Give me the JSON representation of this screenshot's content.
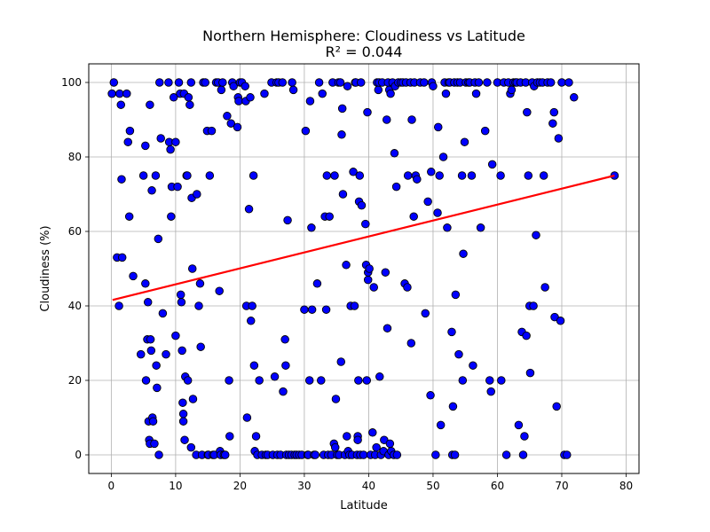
{
  "chart_data": {
    "type": "scatter",
    "title": "Northern Hemisphere: Cloudiness vs Latitude",
    "subtitle": "R² = 0.044",
    "xlabel": "Latitude",
    "ylabel": "Cloudiness (%)",
    "xlim": [
      -3.5,
      82
    ],
    "ylim": [
      -5,
      105
    ],
    "xticks": [
      0,
      10,
      20,
      30,
      40,
      50,
      60,
      70,
      80
    ],
    "yticks": [
      0,
      20,
      40,
      60,
      80,
      100
    ],
    "grid": true,
    "marker_color": "#0000ff",
    "marker_edge_color": "#000000",
    "regression": {
      "x": [
        0.2,
        78.2
      ],
      "y": [
        41.6,
        75.0
      ],
      "color": "#ff0000"
    },
    "points": [
      [
        0.1,
        97
      ],
      [
        0.4,
        100
      ],
      [
        0.9,
        53
      ],
      [
        1.2,
        40
      ],
      [
        1.3,
        97
      ],
      [
        1.5,
        94
      ],
      [
        1.6,
        74
      ],
      [
        1.7,
        53
      ],
      [
        2.4,
        97
      ],
      [
        2.6,
        84
      ],
      [
        2.8,
        64
      ],
      [
        2.9,
        87
      ],
      [
        3.4,
        48
      ],
      [
        4.6,
        27
      ],
      [
        5.0,
        75
      ],
      [
        5.3,
        83
      ],
      [
        5.3,
        46
      ],
      [
        5.4,
        20
      ],
      [
        5.6,
        31
      ],
      [
        5.7,
        41
      ],
      [
        5.8,
        9
      ],
      [
        5.9,
        4
      ],
      [
        6.0,
        3
      ],
      [
        6.0,
        94
      ],
      [
        6.1,
        31
      ],
      [
        6.2,
        28
      ],
      [
        6.3,
        71
      ],
      [
        6.4,
        10
      ],
      [
        6.5,
        9
      ],
      [
        6.7,
        3
      ],
      [
        6.9,
        75
      ],
      [
        7.0,
        24
      ],
      [
        7.1,
        18
      ],
      [
        7.3,
        58
      ],
      [
        7.4,
        0
      ],
      [
        7.5,
        100
      ],
      [
        7.7,
        85
      ],
      [
        8.0,
        38
      ],
      [
        8.5,
        27
      ],
      [
        8.9,
        100
      ],
      [
        9.0,
        84
      ],
      [
        9.2,
        82
      ],
      [
        9.3,
        64
      ],
      [
        9.4,
        72
      ],
      [
        9.7,
        96
      ],
      [
        10.0,
        84
      ],
      [
        10.0,
        32
      ],
      [
        10.3,
        72
      ],
      [
        10.5,
        100
      ],
      [
        10.7,
        97
      ],
      [
        10.8,
        43
      ],
      [
        10.9,
        41
      ],
      [
        11.0,
        28
      ],
      [
        11.1,
        14
      ],
      [
        11.2,
        11
      ],
      [
        11.2,
        9
      ],
      [
        11.3,
        97
      ],
      [
        11.4,
        4
      ],
      [
        11.5,
        21
      ],
      [
        11.7,
        75
      ],
      [
        11.8,
        75
      ],
      [
        11.9,
        20
      ],
      [
        12.0,
        96
      ],
      [
        12.2,
        94
      ],
      [
        12.4,
        100
      ],
      [
        12.4,
        2
      ],
      [
        12.5,
        69
      ],
      [
        12.6,
        50
      ],
      [
        12.7,
        15
      ],
      [
        13.2,
        0
      ],
      [
        13.3,
        70
      ],
      [
        13.6,
        40
      ],
      [
        13.8,
        46
      ],
      [
        13.9,
        29
      ],
      [
        14.1,
        0
      ],
      [
        14.3,
        100
      ],
      [
        14.6,
        100
      ],
      [
        14.9,
        87
      ],
      [
        15.0,
        0
      ],
      [
        15.1,
        0
      ],
      [
        15.3,
        75
      ],
      [
        15.6,
        87
      ],
      [
        15.8,
        0
      ],
      [
        16.0,
        0
      ],
      [
        16.3,
        100
      ],
      [
        16.6,
        100
      ],
      [
        16.8,
        44
      ],
      [
        16.9,
        1
      ],
      [
        17.0,
        0
      ],
      [
        17.1,
        98
      ],
      [
        17.3,
        100
      ],
      [
        17.5,
        0
      ],
      [
        17.7,
        0
      ],
      [
        18.0,
        91
      ],
      [
        18.3,
        20
      ],
      [
        18.4,
        5
      ],
      [
        18.6,
        89
      ],
      [
        18.8,
        100
      ],
      [
        19.0,
        99
      ],
      [
        19.6,
        88
      ],
      [
        19.7,
        96
      ],
      [
        19.8,
        95
      ],
      [
        20.0,
        100
      ],
      [
        20.3,
        100
      ],
      [
        20.8,
        99
      ],
      [
        20.9,
        95
      ],
      [
        21.0,
        40
      ],
      [
        21.1,
        10
      ],
      [
        21.4,
        66
      ],
      [
        21.6,
        96
      ],
      [
        21.7,
        36
      ],
      [
        21.9,
        40
      ],
      [
        22.1,
        75
      ],
      [
        22.2,
        24
      ],
      [
        22.3,
        1
      ],
      [
        22.5,
        5
      ],
      [
        22.7,
        0
      ],
      [
        23.0,
        20
      ],
      [
        23.4,
        0
      ],
      [
        23.8,
        97
      ],
      [
        24.0,
        0
      ],
      [
        24.3,
        0
      ],
      [
        24.9,
        100
      ],
      [
        25.1,
        0
      ],
      [
        25.4,
        21
      ],
      [
        25.7,
        100
      ],
      [
        25.8,
        0
      ],
      [
        26.0,
        100
      ],
      [
        26.3,
        0
      ],
      [
        26.6,
        100
      ],
      [
        26.7,
        17
      ],
      [
        27.0,
        31
      ],
      [
        27.1,
        24
      ],
      [
        27.2,
        0
      ],
      [
        27.4,
        63
      ],
      [
        27.6,
        0
      ],
      [
        28.0,
        0
      ],
      [
        28.1,
        100
      ],
      [
        28.3,
        98
      ],
      [
        28.5,
        0
      ],
      [
        28.8,
        0
      ],
      [
        29.2,
        0
      ],
      [
        29.6,
        0
      ],
      [
        30.0,
        39
      ],
      [
        30.2,
        87
      ],
      [
        30.5,
        0
      ],
      [
        30.6,
        0
      ],
      [
        30.8,
        20
      ],
      [
        30.9,
        95
      ],
      [
        31.1,
        61
      ],
      [
        31.2,
        39
      ],
      [
        31.5,
        0
      ],
      [
        31.7,
        0
      ],
      [
        32.0,
        46
      ],
      [
        32.3,
        100
      ],
      [
        32.6,
        20
      ],
      [
        32.8,
        97
      ],
      [
        33.0,
        0
      ],
      [
        33.2,
        64
      ],
      [
        33.4,
        39
      ],
      [
        33.5,
        75
      ],
      [
        33.7,
        0
      ],
      [
        33.9,
        64
      ],
      [
        34.2,
        0
      ],
      [
        34.4,
        100
      ],
      [
        34.6,
        3
      ],
      [
        34.7,
        75
      ],
      [
        34.8,
        2
      ],
      [
        34.9,
        15
      ],
      [
        35.1,
        0
      ],
      [
        35.3,
        100
      ],
      [
        35.4,
        0
      ],
      [
        35.6,
        100
      ],
      [
        35.7,
        25
      ],
      [
        35.8,
        86
      ],
      [
        35.9,
        93
      ],
      [
        36.0,
        70
      ],
      [
        36.3,
        0
      ],
      [
        36.5,
        51
      ],
      [
        36.6,
        5
      ],
      [
        36.7,
        99
      ],
      [
        36.8,
        1
      ],
      [
        37.0,
        0
      ],
      [
        37.2,
        40
      ],
      [
        37.4,
        0
      ],
      [
        37.6,
        76
      ],
      [
        37.8,
        40
      ],
      [
        37.9,
        100
      ],
      [
        38.0,
        100
      ],
      [
        38.2,
        0
      ],
      [
        38.3,
        5
      ],
      [
        38.3,
        4
      ],
      [
        38.4,
        20
      ],
      [
        38.5,
        68
      ],
      [
        38.6,
        75
      ],
      [
        38.7,
        0
      ],
      [
        38.8,
        100
      ],
      [
        38.9,
        67
      ],
      [
        39.2,
        0
      ],
      [
        39.5,
        62
      ],
      [
        39.6,
        51
      ],
      [
        39.7,
        20
      ],
      [
        39.8,
        92
      ],
      [
        39.9,
        47
      ],
      [
        39.9,
        49
      ],
      [
        40.1,
        50
      ],
      [
        40.3,
        0
      ],
      [
        40.6,
        6
      ],
      [
        40.8,
        45
      ],
      [
        41.0,
        0
      ],
      [
        41.2,
        2
      ],
      [
        41.3,
        100
      ],
      [
        41.5,
        98
      ],
      [
        41.6,
        100
      ],
      [
        41.7,
        21
      ],
      [
        41.9,
        0
      ],
      [
        42.1,
        100
      ],
      [
        42.3,
        1
      ],
      [
        42.4,
        4
      ],
      [
        42.6,
        49
      ],
      [
        42.8,
        90
      ],
      [
        42.9,
        34
      ],
      [
        43.0,
        100
      ],
      [
        43.1,
        0
      ],
      [
        43.2,
        98
      ],
      [
        43.3,
        3
      ],
      [
        43.4,
        97
      ],
      [
        43.5,
        1
      ],
      [
        43.7,
        100
      ],
      [
        43.9,
        0
      ],
      [
        44.0,
        81
      ],
      [
        44.1,
        99
      ],
      [
        44.3,
        72
      ],
      [
        44.4,
        0
      ],
      [
        44.6,
        100
      ],
      [
        45.0,
        100
      ],
      [
        45.3,
        100
      ],
      [
        45.6,
        46
      ],
      [
        45.8,
        100
      ],
      [
        46.0,
        45
      ],
      [
        46.1,
        75
      ],
      [
        46.5,
        100
      ],
      [
        46.6,
        30
      ],
      [
        46.7,
        90
      ],
      [
        47.0,
        64
      ],
      [
        47.1,
        100
      ],
      [
        47.3,
        75
      ],
      [
        47.5,
        74
      ],
      [
        48.0,
        100
      ],
      [
        48.6,
        100
      ],
      [
        48.8,
        38
      ],
      [
        49.2,
        68
      ],
      [
        49.6,
        16
      ],
      [
        49.7,
        76
      ],
      [
        49.8,
        100
      ],
      [
        50.0,
        99
      ],
      [
        50.4,
        0
      ],
      [
        50.7,
        65
      ],
      [
        50.8,
        88
      ],
      [
        51.0,
        75
      ],
      [
        51.2,
        8
      ],
      [
        51.6,
        80
      ],
      [
        51.8,
        100
      ],
      [
        52.0,
        97
      ],
      [
        52.2,
        61
      ],
      [
        52.4,
        100
      ],
      [
        52.6,
        100
      ],
      [
        52.9,
        33
      ],
      [
        53.0,
        0
      ],
      [
        53.1,
        13
      ],
      [
        53.3,
        100
      ],
      [
        53.4,
        0
      ],
      [
        53.5,
        43
      ],
      [
        53.8,
        100
      ],
      [
        54.0,
        27
      ],
      [
        54.2,
        100
      ],
      [
        54.5,
        75
      ],
      [
        54.6,
        20
      ],
      [
        54.7,
        54
      ],
      [
        54.9,
        84
      ],
      [
        55.1,
        100
      ],
      [
        55.5,
        100
      ],
      [
        55.7,
        100
      ],
      [
        56.0,
        75
      ],
      [
        56.2,
        24
      ],
      [
        56.5,
        100
      ],
      [
        56.7,
        97
      ],
      [
        57.1,
        100
      ],
      [
        57.4,
        61
      ],
      [
        58.1,
        87
      ],
      [
        58.4,
        100
      ],
      [
        58.8,
        20
      ],
      [
        59.0,
        17
      ],
      [
        59.2,
        78
      ],
      [
        60.0,
        100
      ],
      [
        60.5,
        75
      ],
      [
        60.6,
        20
      ],
      [
        61.0,
        100
      ],
      [
        61.4,
        0
      ],
      [
        61.7,
        100
      ],
      [
        62.0,
        97
      ],
      [
        62.2,
        98
      ],
      [
        62.5,
        100
      ],
      [
        62.8,
        100
      ],
      [
        63.0,
        100
      ],
      [
        63.3,
        8
      ],
      [
        63.6,
        100
      ],
      [
        63.8,
        33
      ],
      [
        64.0,
        0
      ],
      [
        64.2,
        5
      ],
      [
        64.4,
        100
      ],
      [
        64.5,
        32
      ],
      [
        64.6,
        92
      ],
      [
        64.8,
        75
      ],
      [
        65.0,
        40
      ],
      [
        65.1,
        22
      ],
      [
        65.4,
        100
      ],
      [
        65.6,
        40
      ],
      [
        65.7,
        99
      ],
      [
        66.0,
        59
      ],
      [
        66.2,
        100
      ],
      [
        66.6,
        100
      ],
      [
        67.0,
        100
      ],
      [
        67.2,
        75
      ],
      [
        67.4,
        45
      ],
      [
        67.8,
        100
      ],
      [
        68.3,
        100
      ],
      [
        68.6,
        89
      ],
      [
        68.8,
        92
      ],
      [
        68.9,
        37
      ],
      [
        69.2,
        13
      ],
      [
        69.5,
        85
      ],
      [
        69.8,
        36
      ],
      [
        70.0,
        100
      ],
      [
        70.4,
        0
      ],
      [
        70.8,
        0
      ],
      [
        71.1,
        100
      ],
      [
        71.9,
        96
      ],
      [
        78.2,
        75
      ]
    ]
  }
}
